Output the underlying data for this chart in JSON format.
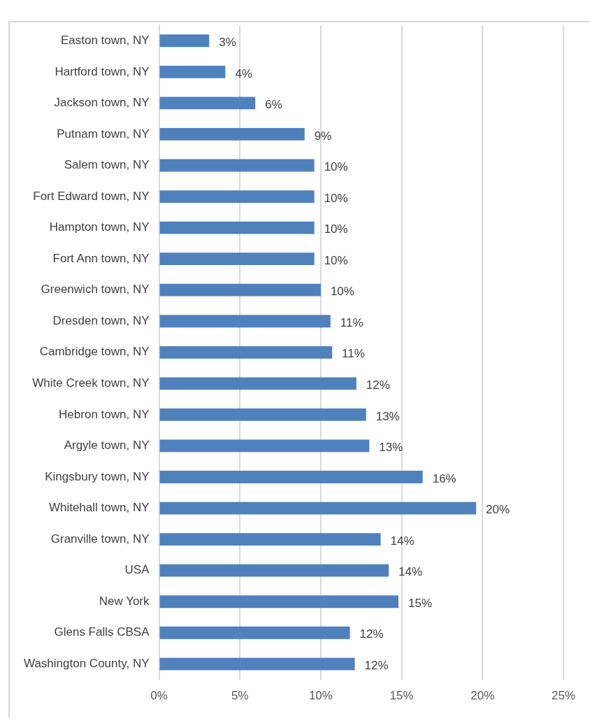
{
  "chart_data": {
    "type": "bar",
    "orientation": "horizontal",
    "categories": [
      "Easton town, NY",
      "Hartford town, NY",
      "Jackson town, NY",
      "Putnam town, NY",
      "Salem town, NY",
      "Fort Edward town, NY",
      "Hampton town, NY",
      "Fort Ann town, NY",
      "Greenwich town, NY",
      "Dresden town, NY",
      "Cambridge town, NY",
      "White Creek town, NY",
      "Hebron town, NY",
      "Argyle town, NY",
      "Kingsbury town, NY",
      "Whitehall town, NY",
      "Granville town, NY",
      "USA",
      "New York",
      "Glens Falls CBSA",
      "Washington County, NY"
    ],
    "values": [
      3.1,
      4.1,
      5.95,
      9.0,
      9.6,
      9.6,
      9.6,
      9.6,
      10.0,
      10.6,
      10.7,
      12.2,
      12.8,
      13.0,
      16.3,
      19.6,
      13.7,
      14.2,
      14.8,
      11.8,
      12.1
    ],
    "value_labels": [
      "3%",
      "4%",
      "6%",
      "9%",
      "10%",
      "10%",
      "10%",
      "10%",
      "10%",
      "11%",
      "11%",
      "12%",
      "13%",
      "13%",
      "16%",
      "20%",
      "14%",
      "14%",
      "15%",
      "12%",
      "12%"
    ],
    "color": "#4f81bd",
    "xlim": [
      0,
      25
    ],
    "xticks": [
      {
        "value": 0,
        "label": "0%"
      },
      {
        "value": 5,
        "label": "5%"
      },
      {
        "value": 10,
        "label": "10%"
      },
      {
        "value": 15,
        "label": "15%"
      },
      {
        "value": 20,
        "label": "20%"
      },
      {
        "value": 25,
        "label": "25%"
      }
    ],
    "grid": "x",
    "legend": false
  }
}
